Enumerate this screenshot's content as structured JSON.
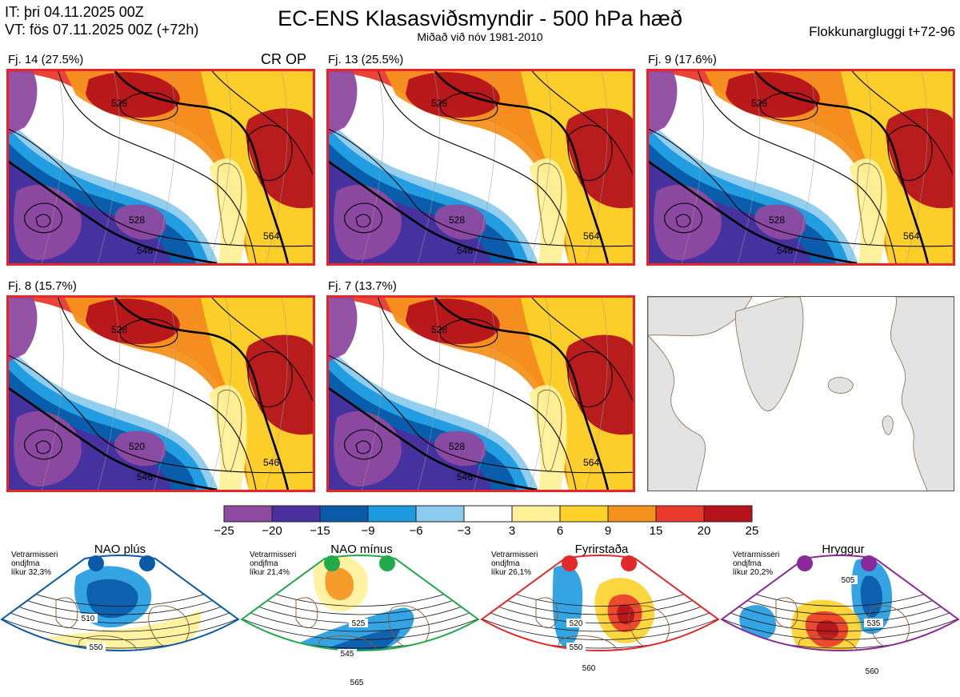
{
  "header": {
    "it_line": "IT: þri 04.11.2025 00Z",
    "vt_line": "VT: fös 07.11.2025 00Z  (+72h)",
    "title": "EC-ENS Klasasviðsmyndir - 500 hPa hæð",
    "subtitle": "Miðað við nóv 1981-2010",
    "window_label": "Flokkunargluggi t+72-96"
  },
  "clusters": [
    {
      "label": "Fj. 14 (27.5%)",
      "tag": "CR OP",
      "contours": [
        "528",
        "528",
        "546",
        "564"
      ]
    },
    {
      "label": "Fj. 13 (25.5%)",
      "tag": "",
      "contours": [
        "528",
        "528",
        "546",
        "564"
      ]
    },
    {
      "label": "Fj. 9 (17.6%)",
      "tag": "",
      "contours": [
        "528",
        "528",
        "546",
        "564"
      ]
    },
    {
      "label": "Fj. 8 (15.7%)",
      "tag": "",
      "contours": [
        "528",
        "520",
        "546",
        "546"
      ]
    },
    {
      "label": "Fj. 7 (13.7%)",
      "tag": "",
      "contours": [
        "528",
        "528",
        "546",
        "564"
      ]
    }
  ],
  "colorbar": {
    "ticks": [
      "−25",
      "−20",
      "−15",
      "−9",
      "−6",
      "−3",
      "3",
      "6",
      "9",
      "15",
      "20",
      "25"
    ],
    "colors": [
      "#8e4aa0",
      "#4a2f9e",
      "#0a5aa8",
      "#1e9ae0",
      "#8ccbed",
      "#ffffff",
      "#fff199",
      "#fcd22a",
      "#f5921e",
      "#ea3a2c",
      "#b5121b"
    ]
  },
  "regimes": [
    {
      "name": "NAO plús",
      "note": [
        "Vetrarmisseri",
        "ondjfma",
        "líkur 32,3%"
      ],
      "color": "#0a5aa8",
      "contours": [
        "510",
        "550"
      ]
    },
    {
      "name": "NAO mínus",
      "note": [
        "Vetrarmisseri",
        "ondjfma",
        "líkur 21,4%"
      ],
      "color": "#21a94c",
      "contours": [
        "525",
        "545",
        "565"
      ]
    },
    {
      "name": "Fyrirstaða",
      "note": [
        "Vetrarmisseri",
        "ondjfma",
        "líkur 26,1%"
      ],
      "color": "#e22a2a",
      "contours": [
        "520",
        "550",
        "560"
      ]
    },
    {
      "name": "Hryggur",
      "note": [
        "Vetrarmisseri",
        "ondjfma",
        "líkur 20,2%"
      ],
      "color": "#8a2a9a",
      "contours": [
        "505",
        "535",
        "560"
      ]
    }
  ]
}
